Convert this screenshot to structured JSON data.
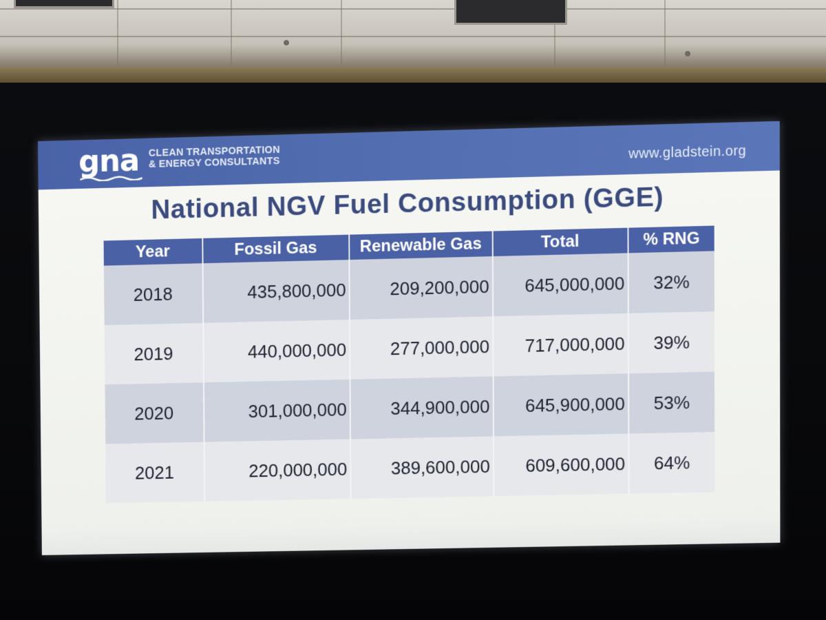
{
  "slide": {
    "logo_text": "gna",
    "tagline_line1": "CLEAN TRANSPORTATION",
    "tagline_line2": "& ENERGY CONSULTANTS",
    "website": "www.gladstein.org",
    "title": "National NGV Fuel Consumption (GGE)"
  },
  "table": {
    "headers": [
      "Year",
      "Fossil Gas",
      "Renewable Gas",
      "Total",
      "% RNG"
    ],
    "rows": [
      [
        "2018",
        "435,800,000",
        "209,200,000",
        "645,000,000",
        "32%"
      ],
      [
        "2019",
        "440,000,000",
        "277,000,000",
        "717,000,000",
        "39%"
      ],
      [
        "2020",
        "301,000,000",
        "344,900,000",
        "645,900,000",
        "53%"
      ],
      [
        "2021",
        "220,000,000",
        "389,600,000",
        "609,600,000",
        "64%"
      ]
    ]
  },
  "colors": {
    "banner": "#4a63a8",
    "title": "#3b4b7e",
    "header_row": "#4b61a6",
    "row_shaded": "#cfd3de",
    "row_light": "#e6e8ec"
  }
}
